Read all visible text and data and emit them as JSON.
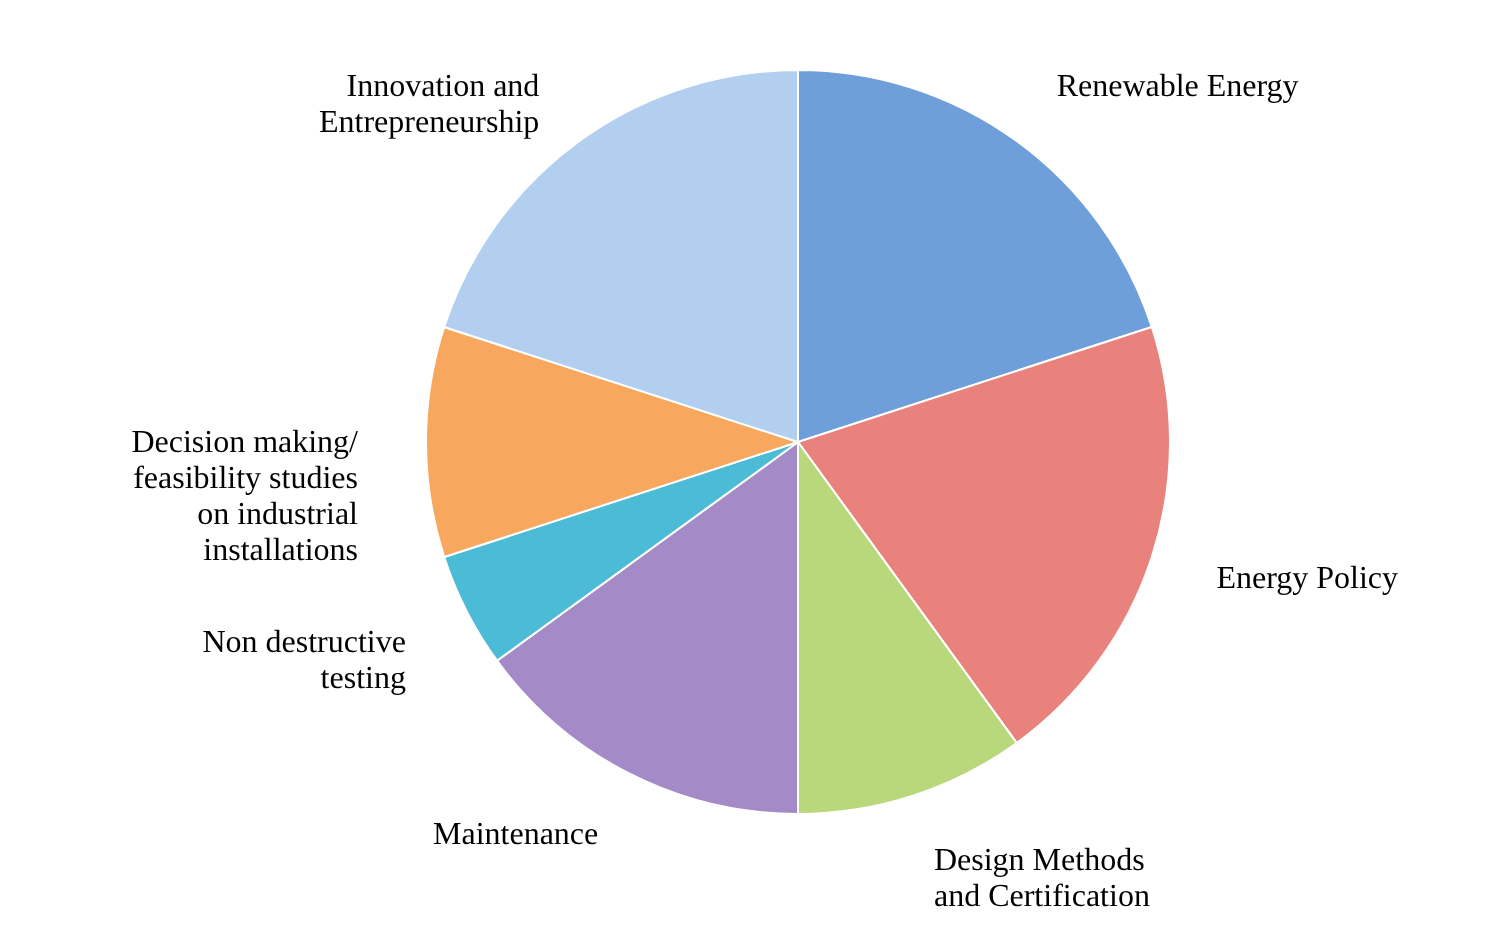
{
  "chart_data": {
    "type": "pie",
    "categories": [
      "Renewable Energy",
      "Energy  Policy",
      "Design  Methods\nand  Certification",
      "Maintenance",
      "Non destructive\ntesting",
      "Decision making/\nfeasibility  studies\non  industrial\ninstallations",
      "Innovation and\nEntrepreneurship"
    ],
    "values": [
      20,
      20,
      10,
      15,
      5,
      10,
      20
    ],
    "colors": [
      "#6f9fdb",
      "#e9827c",
      "#b9d87c",
      "#a48bc7",
      "#4cbbd6",
      "#f8a85e",
      "#b3cff0"
    ]
  }
}
